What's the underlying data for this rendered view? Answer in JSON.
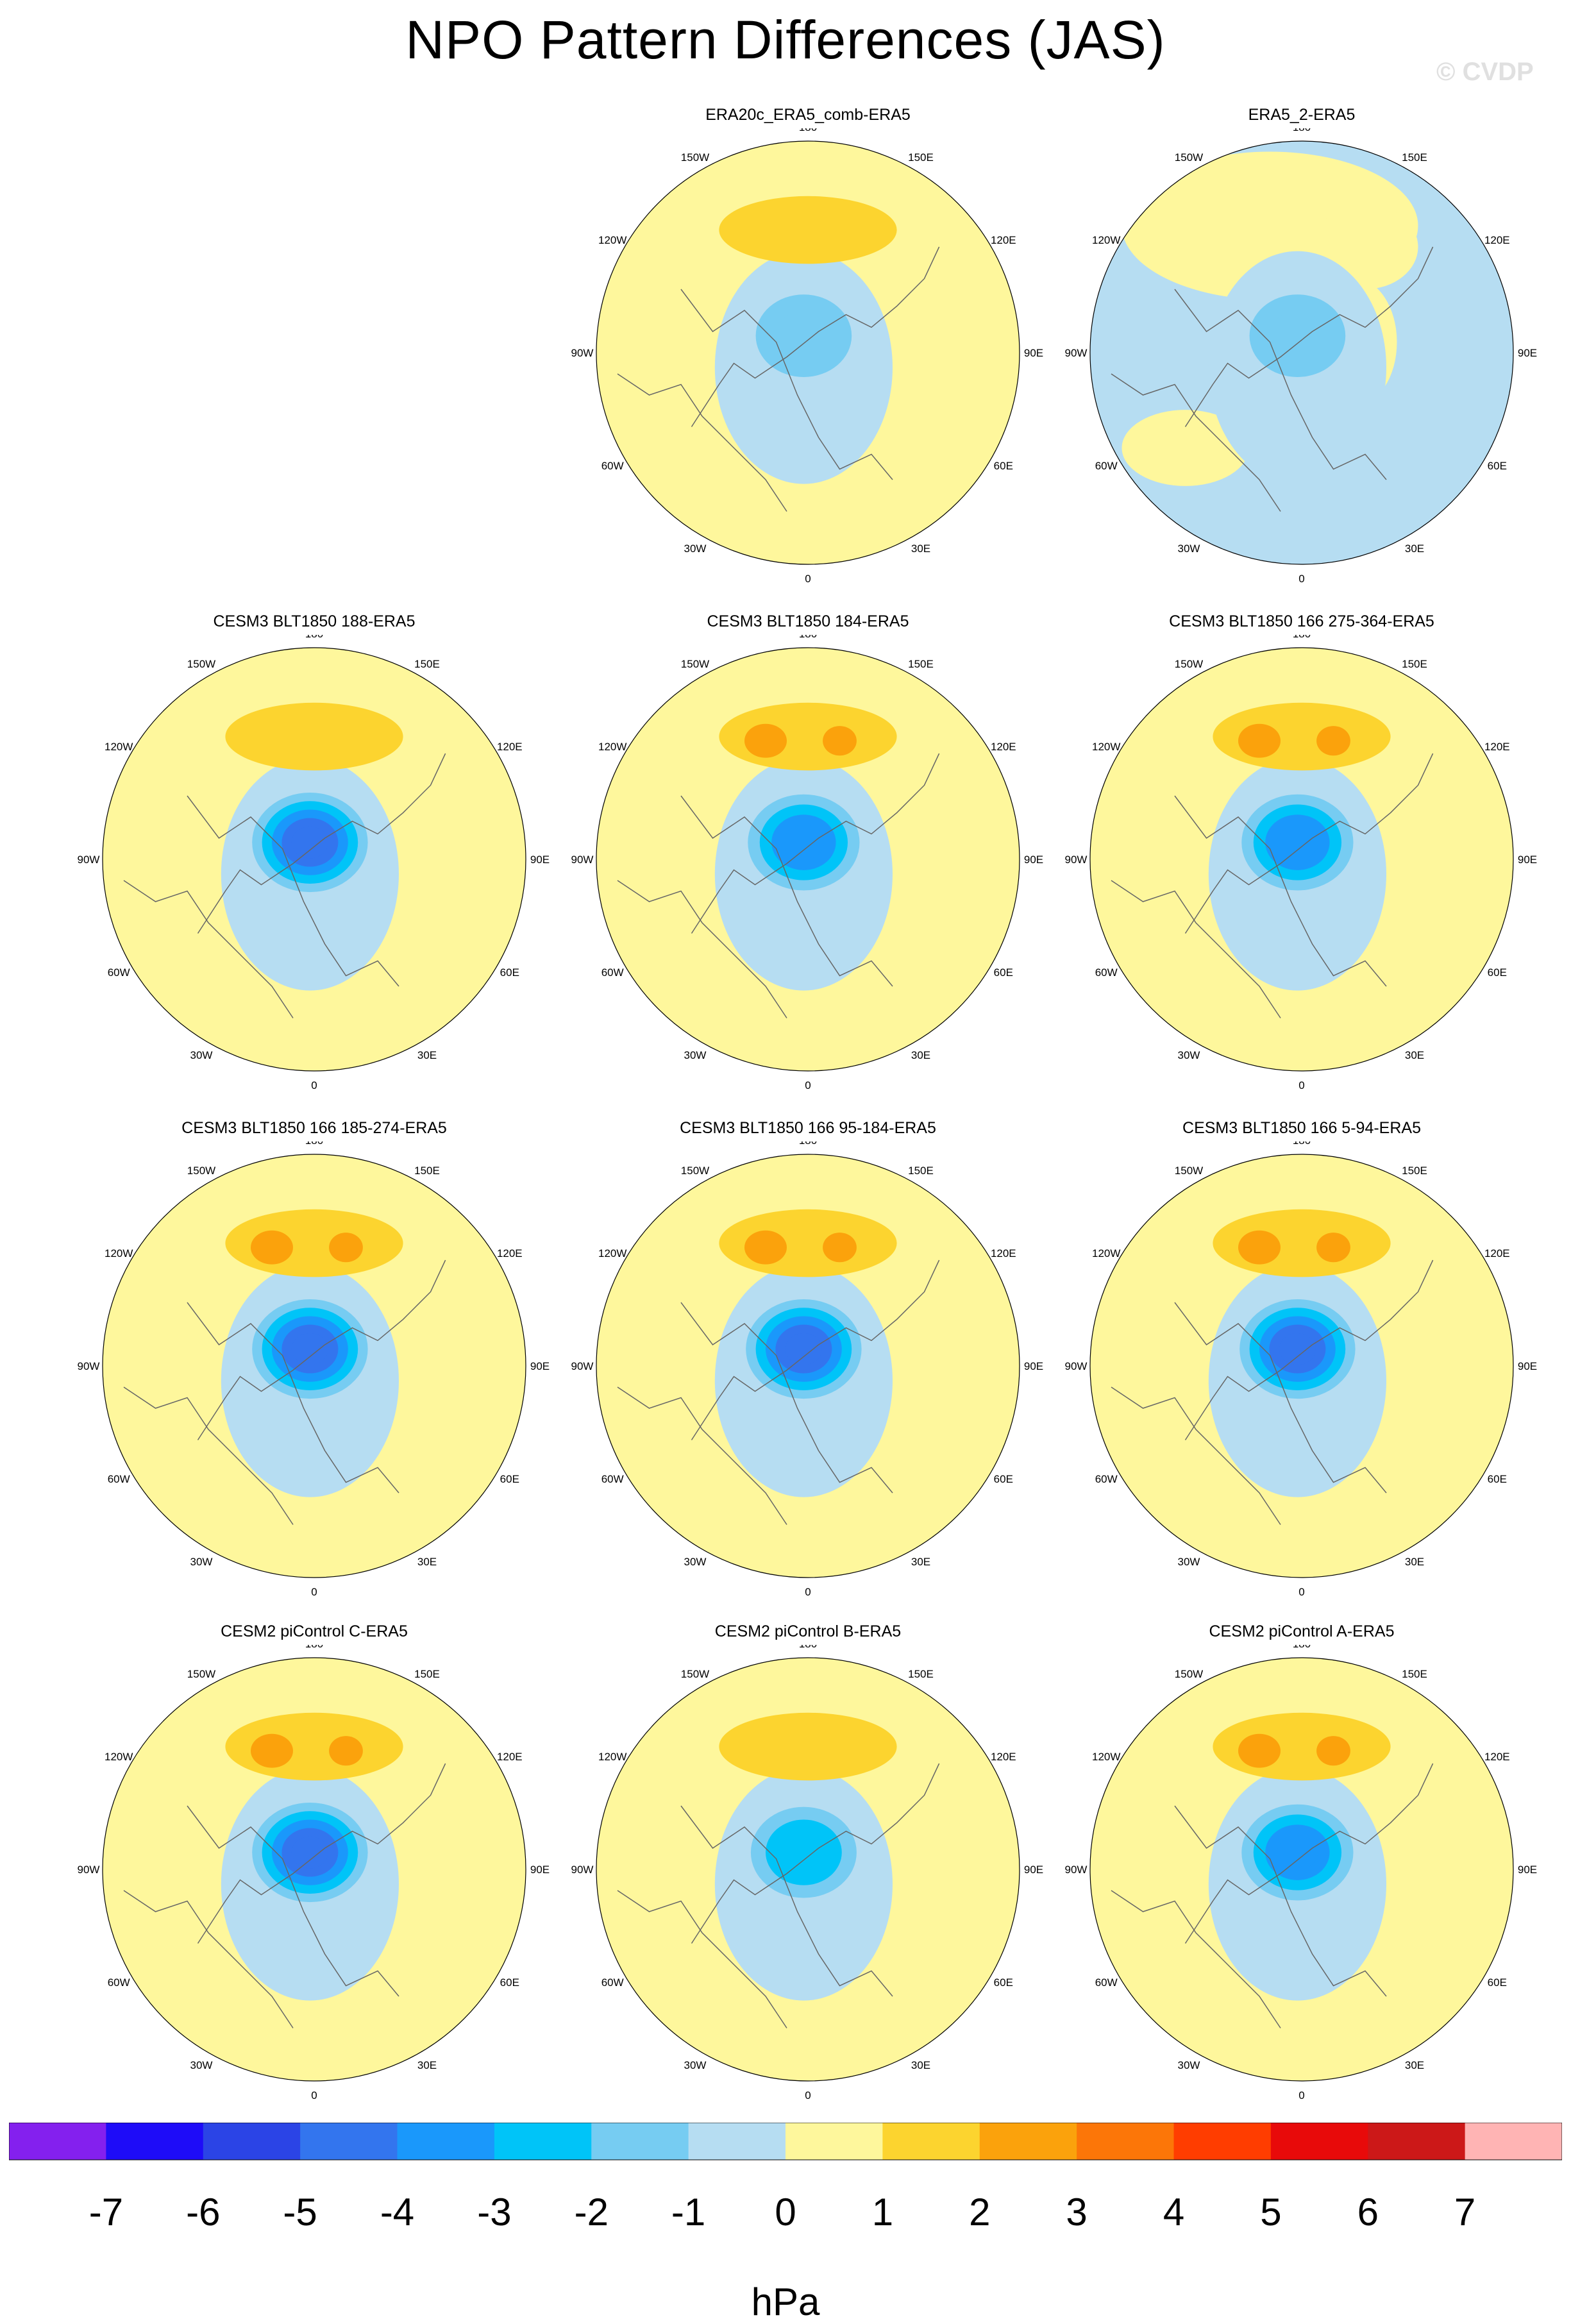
{
  "title": "NPO Pattern Differences (JAS)",
  "watermark": "© CVDP",
  "colors": {
    "levels": [
      "#8420ee",
      "#1e0cf8",
      "#2b44e6",
      "#3375ee",
      "#1a98fb",
      "#00c4f8",
      "#76ccf2",
      "#b6ddf2",
      "#fef79c",
      "#fcd42f",
      "#fba20c",
      "#fc7608",
      "#ff3d00",
      "#e80a0a",
      "#cc1818",
      "#ffb4b4"
    ],
    "coast": "#666666"
  },
  "colorbar": {
    "tick_labels": [
      "-7",
      "-6",
      "-5",
      "-4",
      "-3",
      "-2",
      "-1",
      "0",
      "1",
      "2",
      "3",
      "4",
      "5",
      "6",
      "7"
    ],
    "units": "hPa"
  },
  "lon_labels": [
    "180",
    "150E",
    "120E",
    "90E",
    "60E",
    "30E",
    "0",
    "30W",
    "60W",
    "90W",
    "120W",
    "150W"
  ],
  "panels": [
    {
      "title": "ERA20c_ERA5_comb-ERA5",
      "max": 1.3,
      "min": -2.0,
      "high_offset": [
        0.0,
        -0.3
      ],
      "background": "pos"
    },
    {
      "title": "ERA5_2-ERA5",
      "max": 0.6,
      "min": -1.5,
      "high_offset": [
        0.1,
        -0.3
      ],
      "background": "mixed"
    },
    {
      "title": "CESM3 BLT1850 188-ERA5",
      "max": 1.6,
      "min": -4.2,
      "high_offset": [
        0.0,
        -0.3
      ],
      "background": "pos"
    },
    {
      "title": "CESM3 BLT1850 184-ERA5",
      "max": 2.4,
      "min": -4.0,
      "high_offset": [
        0.0,
        -0.3
      ],
      "background": "pos"
    },
    {
      "title": "CESM3 BLT1850 166 275-364-ERA5",
      "max": 2.4,
      "min": -4.0,
      "high_offset": [
        0.0,
        -0.3
      ],
      "background": "pos"
    },
    {
      "title": "CESM3 BLT1850 166 185-274-ERA5",
      "max": 2.3,
      "min": -4.1,
      "high_offset": [
        0.0,
        -0.3
      ],
      "background": "pos"
    },
    {
      "title": "CESM3 BLT1850 166 95-184-ERA5",
      "max": 2.2,
      "min": -4.3,
      "high_offset": [
        0.0,
        -0.3
      ],
      "background": "pos"
    },
    {
      "title": "CESM3 BLT1850 166 5-94-ERA5",
      "max": 2.3,
      "min": -4.3,
      "high_offset": [
        0.0,
        -0.3
      ],
      "background": "pos"
    },
    {
      "title": "CESM2 piControl C-ERA5",
      "max": 2.3,
      "min": -4.3,
      "high_offset": [
        0.0,
        -0.3
      ],
      "background": "pos"
    },
    {
      "title": "CESM2 piControl B-ERA5",
      "max": 1.5,
      "min": -2.6,
      "high_offset": [
        0.0,
        -0.3
      ],
      "background": "pos"
    },
    {
      "title": "CESM2 piControl A-ERA5",
      "max": 2.3,
      "min": -3.1,
      "high_offset": [
        0.0,
        -0.3
      ],
      "background": "pos"
    }
  ]
}
